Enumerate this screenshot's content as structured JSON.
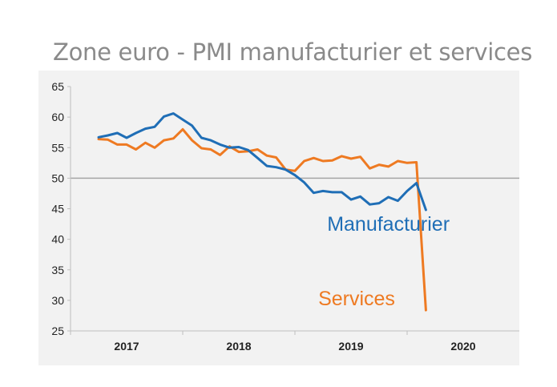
{
  "title": "Zone euro - PMI manufacturier et services",
  "colors": {
    "manufacturier": "#1f6eb6",
    "services": "#ee7a22",
    "reference": "#a6a6a6",
    "axis": "#bfbfbf"
  },
  "chart_data": {
    "type": "line",
    "title": "Zone euro - PMI manufacturier et services",
    "xlabel": "",
    "ylabel": "",
    "ylim": [
      25,
      65
    ],
    "yticks": [
      25,
      30,
      35,
      40,
      45,
      50,
      55,
      60,
      65
    ],
    "xlim": [
      2016.5,
      2020.5
    ],
    "xticks": [
      {
        "label": "2017",
        "value": 2017.0
      },
      {
        "label": "2018",
        "value": 2018.0
      },
      {
        "label": "2019",
        "value": 2019.0
      },
      {
        "label": "2020",
        "value": 2020.0
      }
    ],
    "xgrid_bounds": [
      2016.5,
      2017.5,
      2018.5,
      2019.5
    ],
    "reference_line": 50,
    "x": [
      2016.75,
      2016.833,
      2016.917,
      2017.0,
      2017.083,
      2017.167,
      2017.25,
      2017.333,
      2017.417,
      2017.5,
      2017.583,
      2017.667,
      2017.75,
      2017.833,
      2017.917,
      2018.0,
      2018.083,
      2018.167,
      2018.25,
      2018.333,
      2018.417,
      2018.5,
      2018.583,
      2018.667,
      2018.75,
      2018.833,
      2018.917,
      2019.0,
      2019.083,
      2019.167,
      2019.25,
      2019.333,
      2019.417,
      2019.5,
      2019.583,
      2019.667,
      2019.75,
      2019.833
    ],
    "series": [
      {
        "name": "Manufacturier",
        "label": "Manufacturier",
        "values": [
          56.7,
          57.0,
          57.4,
          56.6,
          57.4,
          58.1,
          58.4,
          60.1,
          60.6,
          59.6,
          58.6,
          56.6,
          56.2,
          55.5,
          55.0,
          55.1,
          54.6,
          53.3,
          52.0,
          51.8,
          51.4,
          50.5,
          49.3,
          47.6,
          47.9,
          47.7,
          47.7,
          46.5,
          47.0,
          45.7,
          45.9,
          46.9,
          46.3,
          47.9,
          49.2,
          44.8,
          null,
          null
        ]
      },
      {
        "name": "Services",
        "label": "Services",
        "values": [
          56.4,
          56.3,
          55.5,
          55.5,
          54.7,
          55.8,
          55.0,
          56.2,
          56.5,
          58.0,
          56.2,
          54.9,
          54.7,
          53.8,
          55.2,
          54.3,
          54.4,
          54.7,
          53.7,
          53.4,
          51.4,
          51.2,
          52.8,
          53.3,
          52.8,
          52.9,
          53.6,
          53.2,
          53.5,
          51.6,
          52.2,
          51.9,
          52.8,
          52.5,
          52.6,
          28.4,
          null,
          null
        ]
      }
    ],
    "annotations": [
      "Manufacturier",
      "Services"
    ]
  }
}
